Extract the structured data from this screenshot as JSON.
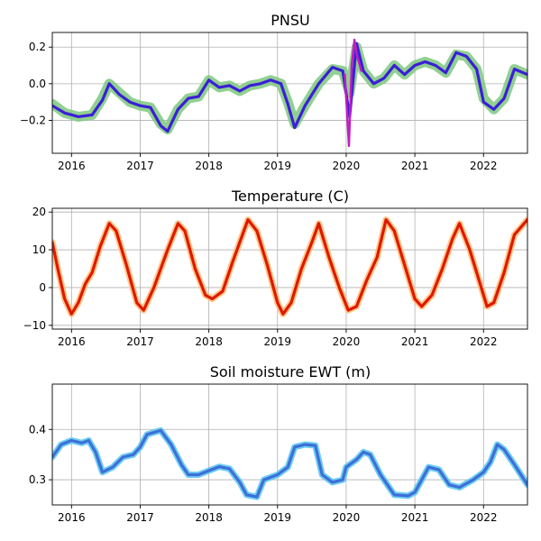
{
  "chart_data": [
    {
      "type": "line",
      "title": "PNSU",
      "xlabel": "",
      "ylabel": "",
      "xlim": [
        2015.72,
        2022.64
      ],
      "ylim": [
        -0.38,
        0.28
      ],
      "grid": true,
      "xticks": [
        2016,
        2017,
        2018,
        2019,
        2020,
        2021,
        2022
      ],
      "xtick_labels": [
        "2016",
        "2017",
        "2018",
        "2019",
        "2020",
        "2021",
        "2022"
      ],
      "yticks": [
        -0.2,
        0.0,
        0.2
      ],
      "ytick_labels": [
        "−0.2",
        "0.0",
        "0.2"
      ],
      "colors": {
        "smooth_band": "#7ec87e",
        "detail": "#3a1fd6",
        "spike": "#c01ec0"
      },
      "series": [
        {
          "role": "smooth",
          "color": "#7ec87e",
          "x": [
            2015.72,
            2015.9,
            2016.1,
            2016.3,
            2016.45,
            2016.55,
            2016.7,
            2016.85,
            2017.0,
            2017.15,
            2017.3,
            2017.4,
            2017.55,
            2017.7,
            2017.85,
            2018.0,
            2018.15,
            2018.3,
            2018.45,
            2018.6,
            2018.75,
            2018.9,
            2019.05,
            2019.15,
            2019.25,
            2019.4,
            2019.6,
            2019.8,
            2019.95,
            2020.05,
            2020.15,
            2020.25,
            2020.4,
            2020.55,
            2020.7,
            2020.85,
            2021.0,
            2021.15,
            2021.3,
            2021.45,
            2021.6,
            2021.75,
            2021.9,
            2022.0,
            2022.15,
            2022.3,
            2022.45,
            2022.64
          ],
          "y": [
            -0.11,
            -0.16,
            -0.18,
            -0.17,
            -0.08,
            0.0,
            -0.05,
            -0.1,
            -0.12,
            -0.13,
            -0.22,
            -0.25,
            -0.14,
            -0.08,
            -0.07,
            0.02,
            -0.02,
            -0.01,
            -0.04,
            -0.01,
            0.0,
            0.02,
            0.0,
            -0.1,
            -0.22,
            -0.12,
            0.0,
            0.08,
            0.07,
            -0.05,
            0.2,
            0.07,
            0.0,
            0.03,
            0.1,
            0.05,
            0.1,
            0.12,
            0.1,
            0.06,
            0.16,
            0.15,
            0.08,
            -0.08,
            -0.14,
            -0.08,
            0.08,
            0.05
          ]
        },
        {
          "role": "detail",
          "color": "#3a1fd6",
          "x": [
            2015.72,
            2015.9,
            2016.1,
            2016.3,
            2016.45,
            2016.55,
            2016.7,
            2016.85,
            2017.0,
            2017.15,
            2017.3,
            2017.4,
            2017.55,
            2017.7,
            2017.85,
            2018.0,
            2018.15,
            2018.3,
            2018.45,
            2018.6,
            2018.75,
            2018.9,
            2019.05,
            2019.15,
            2019.25,
            2019.4,
            2019.6,
            2019.8,
            2019.95,
            2020.05,
            2020.15,
            2020.25,
            2020.4,
            2020.55,
            2020.7,
            2020.85,
            2021.0,
            2021.15,
            2021.3,
            2021.45,
            2021.6,
            2021.75,
            2021.9,
            2022.0,
            2022.15,
            2022.3,
            2022.45,
            2022.64
          ],
          "y": [
            -0.12,
            -0.16,
            -0.18,
            -0.17,
            -0.09,
            0.0,
            -0.06,
            -0.1,
            -0.12,
            -0.13,
            -0.23,
            -0.26,
            -0.14,
            -0.08,
            -0.07,
            0.02,
            -0.02,
            -0.01,
            -0.04,
            -0.01,
            0.0,
            0.02,
            0.0,
            -0.11,
            -0.24,
            -0.12,
            0.0,
            0.09,
            0.07,
            -0.18,
            0.22,
            0.07,
            0.0,
            0.03,
            0.1,
            0.05,
            0.1,
            0.12,
            0.1,
            0.06,
            0.17,
            0.15,
            0.08,
            -0.1,
            -0.14,
            -0.08,
            0.08,
            0.05
          ]
        },
        {
          "role": "spike",
          "color": "#c01ec0",
          "x": [
            2019.98,
            2020.04,
            2020.08,
            2020.12,
            2020.16,
            2020.22
          ],
          "y": [
            0.05,
            -0.34,
            0.1,
            0.24,
            0.15,
            0.07
          ]
        }
      ]
    },
    {
      "type": "line",
      "title": "Temperature (C)",
      "xlabel": "",
      "ylabel": "",
      "xlim": [
        2015.72,
        2022.64
      ],
      "ylim": [
        -11.0,
        21.0
      ],
      "grid": true,
      "xticks": [
        2016,
        2017,
        2018,
        2019,
        2020,
        2021,
        2022
      ],
      "xtick_labels": [
        "2016",
        "2017",
        "2018",
        "2019",
        "2020",
        "2021",
        "2022"
      ],
      "yticks": [
        -10,
        0,
        10,
        20
      ],
      "ytick_labels": [
        "−10",
        "0",
        "10",
        "20"
      ],
      "colors": {
        "smooth_band": "#ffc07a",
        "detail": "#e01800"
      },
      "series": [
        {
          "role": "band",
          "color": "#ffc07a",
          "x": [
            2015.72,
            2015.8,
            2015.9,
            2016.0,
            2016.1,
            2016.2,
            2016.3,
            2016.42,
            2016.55,
            2016.65,
            2016.8,
            2016.95,
            2017.05,
            2017.2,
            2017.3,
            2017.4,
            2017.55,
            2017.65,
            2017.8,
            2017.95,
            2018.05,
            2018.2,
            2018.35,
            2018.45,
            2018.57,
            2018.7,
            2018.85,
            2019.0,
            2019.08,
            2019.2,
            2019.35,
            2019.5,
            2019.6,
            2019.75,
            2019.9,
            2020.03,
            2020.15,
            2020.3,
            2020.45,
            2020.58,
            2020.7,
            2020.85,
            2021.0,
            2021.1,
            2021.25,
            2021.4,
            2021.55,
            2021.65,
            2021.8,
            2021.95,
            2022.05,
            2022.15,
            2022.3,
            2022.45,
            2022.64
          ],
          "y": [
            12,
            5,
            -3,
            -7,
            -4,
            1,
            4,
            11,
            17,
            15,
            6,
            -4,
            -6,
            0,
            5,
            10,
            17,
            15,
            5,
            -2,
            -3,
            -1,
            7,
            12,
            18,
            15,
            6,
            -4,
            -7,
            -4,
            5,
            12,
            17,
            8,
            0,
            -6,
            -5,
            2,
            8,
            18,
            15,
            6,
            -3,
            -5,
            -2,
            5,
            13,
            17,
            10,
            1,
            -5,
            -4,
            4,
            14,
            18
          ]
        },
        {
          "role": "detail",
          "color": "#e01800",
          "x": [
            2015.72,
            2015.8,
            2015.9,
            2016.0,
            2016.1,
            2016.2,
            2016.3,
            2016.42,
            2016.55,
            2016.65,
            2016.8,
            2016.95,
            2017.05,
            2017.2,
            2017.3,
            2017.4,
            2017.55,
            2017.65,
            2017.8,
            2017.95,
            2018.05,
            2018.2,
            2018.35,
            2018.45,
            2018.57,
            2018.7,
            2018.85,
            2019.0,
            2019.08,
            2019.2,
            2019.35,
            2019.5,
            2019.6,
            2019.75,
            2019.9,
            2020.03,
            2020.15,
            2020.3,
            2020.45,
            2020.58,
            2020.7,
            2020.85,
            2021.0,
            2021.1,
            2021.25,
            2021.4,
            2021.55,
            2021.65,
            2021.8,
            2021.95,
            2022.05,
            2022.15,
            2022.3,
            2022.45,
            2022.64
          ],
          "y": [
            12,
            5,
            -3,
            -7,
            -4,
            1,
            4,
            11,
            17,
            15,
            6,
            -4,
            -6,
            0,
            5,
            10,
            17,
            15,
            5,
            -2,
            -3,
            -1,
            7,
            12,
            18,
            15,
            6,
            -4,
            -7,
            -4,
            5,
            12,
            17,
            8,
            0,
            -6,
            -5,
            2,
            8,
            18,
            15,
            6,
            -3,
            -5,
            -2,
            5,
            13,
            17,
            10,
            1,
            -5,
            -4,
            4,
            14,
            18
          ]
        }
      ]
    },
    {
      "type": "line",
      "title": "Soil moisture EWT (m)",
      "xlabel": "",
      "ylabel": "",
      "xlim": [
        2015.72,
        2022.64
      ],
      "ylim": [
        0.25,
        0.49
      ],
      "grid": true,
      "xticks": [
        2016,
        2017,
        2018,
        2019,
        2020,
        2021,
        2022
      ],
      "xtick_labels": [
        "2016",
        "2017",
        "2018",
        "2019",
        "2020",
        "2021",
        "2022"
      ],
      "yticks": [
        0.3,
        0.4
      ],
      "ytick_labels": [
        "0.3",
        "0.4"
      ],
      "colors": {
        "smooth_band": "#5ec8f0",
        "detail": "#3d6fd8"
      },
      "series": [
        {
          "role": "band",
          "color": "#5ec8f0",
          "x": [
            2015.72,
            2015.85,
            2016.0,
            2016.15,
            2016.25,
            2016.35,
            2016.45,
            2016.6,
            2016.75,
            2016.9,
            2017.0,
            2017.1,
            2017.3,
            2017.45,
            2017.6,
            2017.7,
            2017.85,
            2018.0,
            2018.15,
            2018.3,
            2018.45,
            2018.55,
            2018.7,
            2018.8,
            2019.0,
            2019.15,
            2019.25,
            2019.4,
            2019.55,
            2019.65,
            2019.8,
            2019.95,
            2020.0,
            2020.15,
            2020.25,
            2020.35,
            2020.5,
            2020.7,
            2020.9,
            2021.0,
            2021.1,
            2021.2,
            2021.35,
            2021.5,
            2021.65,
            2021.85,
            2022.0,
            2022.1,
            2022.2,
            2022.3,
            2022.45,
            2022.64
          ],
          "y": [
            0.345,
            0.37,
            0.378,
            0.373,
            0.378,
            0.355,
            0.315,
            0.325,
            0.345,
            0.35,
            0.365,
            0.39,
            0.398,
            0.37,
            0.33,
            0.31,
            0.31,
            0.318,
            0.326,
            0.322,
            0.295,
            0.27,
            0.266,
            0.3,
            0.31,
            0.325,
            0.365,
            0.37,
            0.368,
            0.31,
            0.295,
            0.3,
            0.325,
            0.34,
            0.355,
            0.35,
            0.31,
            0.27,
            0.268,
            0.275,
            0.3,
            0.325,
            0.32,
            0.29,
            0.285,
            0.3,
            0.315,
            0.335,
            0.37,
            0.36,
            0.33,
            0.29
          ]
        },
        {
          "role": "detail",
          "color": "#3d6fd8",
          "x": [
            2015.72,
            2015.85,
            2016.0,
            2016.15,
            2016.25,
            2016.35,
            2016.45,
            2016.6,
            2016.75,
            2016.9,
            2017.0,
            2017.1,
            2017.3,
            2017.45,
            2017.6,
            2017.7,
            2017.85,
            2018.0,
            2018.15,
            2018.3,
            2018.45,
            2018.55,
            2018.7,
            2018.8,
            2019.0,
            2019.15,
            2019.25,
            2019.4,
            2019.55,
            2019.65,
            2019.8,
            2019.95,
            2020.0,
            2020.15,
            2020.25,
            2020.35,
            2020.5,
            2020.7,
            2020.9,
            2021.0,
            2021.1,
            2021.2,
            2021.35,
            2021.5,
            2021.65,
            2021.85,
            2022.0,
            2022.1,
            2022.2,
            2022.3,
            2022.45,
            2022.64
          ],
          "y": [
            0.345,
            0.37,
            0.378,
            0.373,
            0.378,
            0.355,
            0.315,
            0.325,
            0.345,
            0.35,
            0.365,
            0.39,
            0.398,
            0.37,
            0.33,
            0.31,
            0.31,
            0.318,
            0.326,
            0.322,
            0.295,
            0.27,
            0.266,
            0.3,
            0.31,
            0.325,
            0.365,
            0.37,
            0.368,
            0.31,
            0.295,
            0.3,
            0.325,
            0.34,
            0.355,
            0.35,
            0.31,
            0.27,
            0.268,
            0.275,
            0.3,
            0.325,
            0.32,
            0.29,
            0.285,
            0.3,
            0.315,
            0.335,
            0.37,
            0.36,
            0.33,
            0.29
          ]
        }
      ]
    }
  ]
}
